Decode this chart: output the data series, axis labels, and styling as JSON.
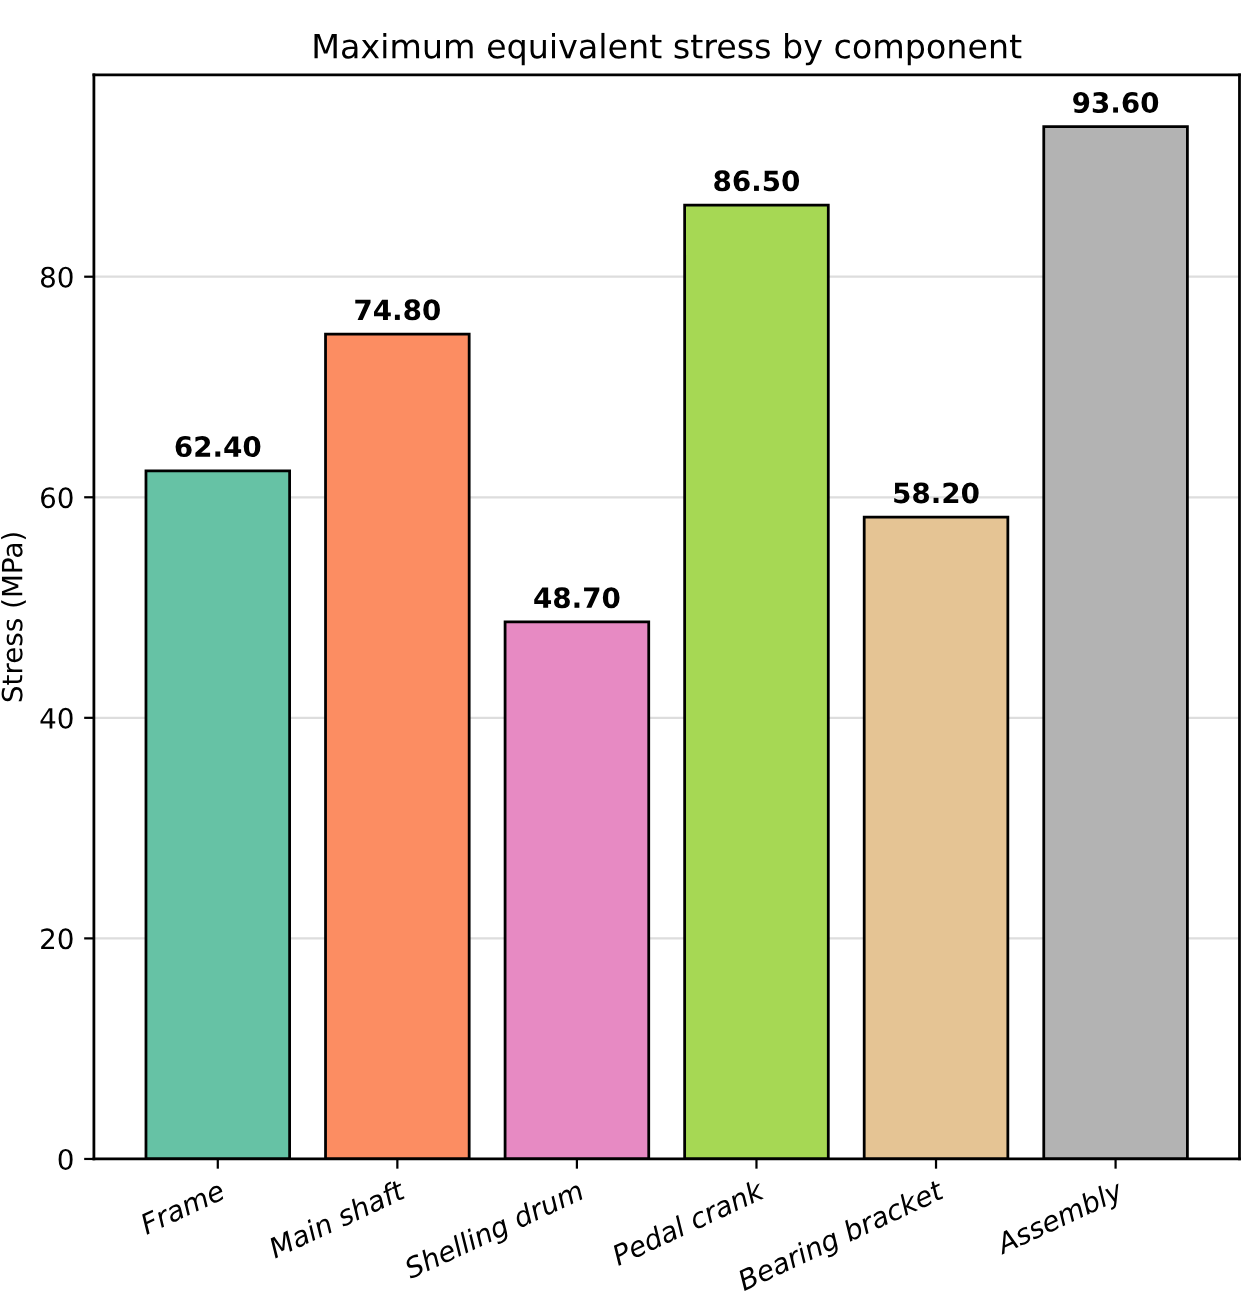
{
  "chart_data": {
    "type": "bar",
    "title": "Maximum equivalent stress by component",
    "ylabel": "Stress (MPa)",
    "categories": [
      "Frame",
      "Main shaft",
      "Shelling drum",
      "Pedal crank",
      "Bearing bracket",
      "Assembly"
    ],
    "values": [
      62.4,
      74.8,
      48.7,
      86.5,
      58.2,
      93.6
    ],
    "colors": [
      "#66c2a5",
      "#fc8d62",
      "#e78ac3",
      "#a6d854",
      "#e5c494",
      "#b3b3b3"
    ],
    "value_labels": [
      "62.40",
      "74.80",
      "48.70",
      "86.50",
      "58.20",
      "93.60"
    ],
    "ylim": [
      0,
      98.3
    ],
    "yticks": [
      0,
      20,
      40,
      60,
      80
    ],
    "grid": "y",
    "legend": false
  }
}
